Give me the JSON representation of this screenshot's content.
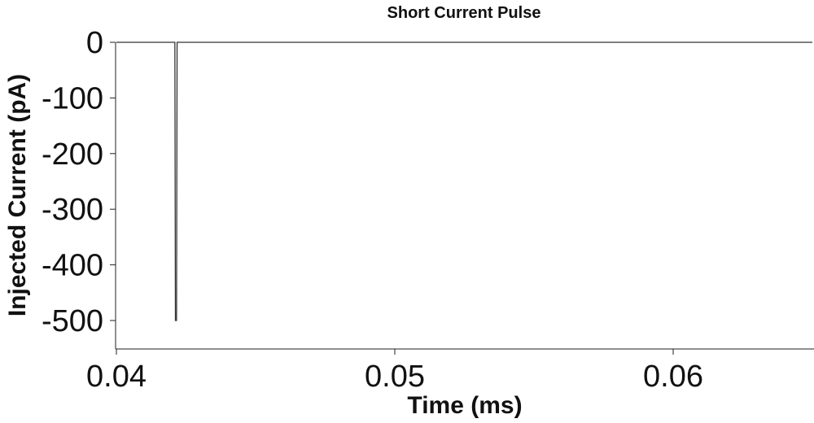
{
  "chart_data": {
    "type": "line",
    "title": "Short Current Pulse",
    "xlabel": "Time (ms)",
    "ylabel": "Injected Current (pA)",
    "xlim": [
      0.04,
      0.065
    ],
    "ylim": [
      -550,
      0
    ],
    "xticks": [
      0.04,
      0.05,
      0.06
    ],
    "xtick_labels": [
      "0.04",
      "0.05",
      "0.06"
    ],
    "yticks": [
      0,
      -100,
      -200,
      -300,
      -400,
      -500
    ],
    "ytick_labels": [
      "0",
      "-100",
      "-200",
      "-300",
      "-400",
      "-500"
    ],
    "grid": false,
    "color": "#333333",
    "series": [
      {
        "x": [
          0.04,
          0.0421,
          0.04212,
          0.04216,
          0.04218,
          0.065
        ],
        "y": [
          0,
          0,
          -500,
          -500,
          0,
          0
        ]
      }
    ]
  }
}
